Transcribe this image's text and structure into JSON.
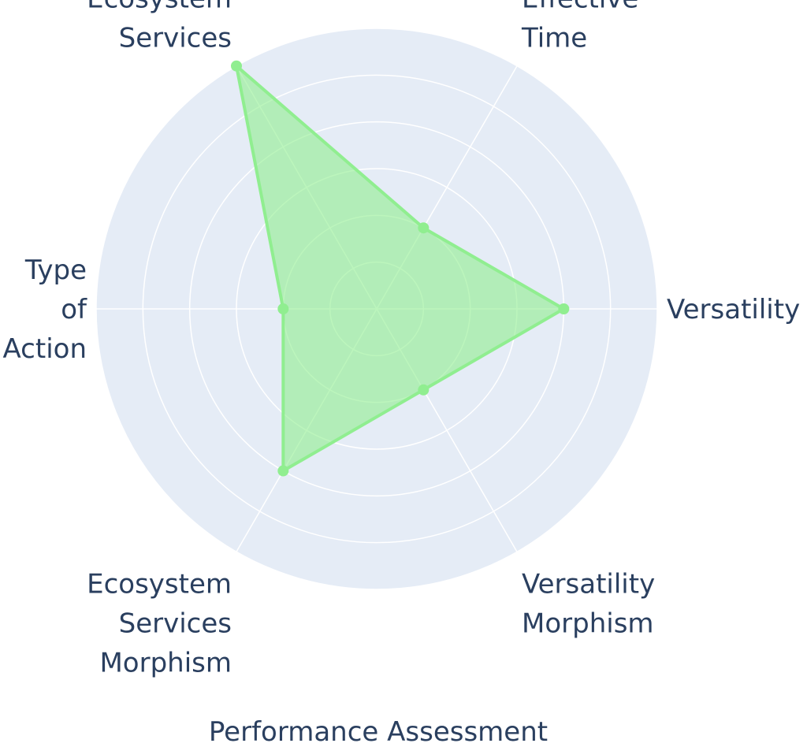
{
  "chart_data": {
    "type": "radar",
    "title": "Performance Assessment",
    "categories": [
      [
        "Versatility"
      ],
      [
        "Effective",
        "Time"
      ],
      [
        "Ecosystem",
        "Services"
      ],
      [
        "Type",
        "of",
        "Action"
      ],
      [
        "Ecosystem",
        "Services",
        "Morphism"
      ],
      [
        "Versatility",
        "Morphism"
      ]
    ],
    "series": [
      {
        "values": [
          4,
          2,
          6,
          2,
          4,
          2
        ]
      }
    ],
    "r_range": [
      0,
      6
    ],
    "r_gridlines": [
      1,
      2,
      3,
      4,
      5,
      6
    ],
    "grid": true,
    "colors": {
      "plot_background": "#e5ecf6",
      "grid": "#ffffff",
      "line": "#90ee90",
      "fill": "rgba(144,238,144,0.6)",
      "text": "#2a3f5f"
    }
  }
}
